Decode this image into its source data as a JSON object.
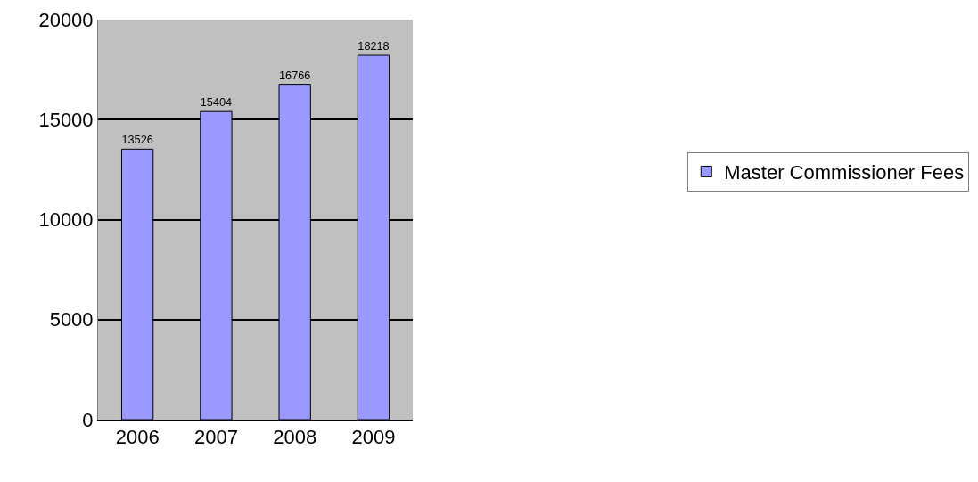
{
  "chart_data": {
    "type": "bar",
    "categories": [
      "2006",
      "2007",
      "2008",
      "2009"
    ],
    "series": [
      {
        "name": "Master Commissioner Fees",
        "color": "#9999ff",
        "values": [
          13526,
          15404,
          16766,
          18218
        ]
      }
    ],
    "ylim": [
      0,
      20000
    ],
    "yticks": [
      0,
      5000,
      10000,
      15000,
      20000
    ],
    "grid": "y",
    "legend": "right",
    "data_labels": true
  }
}
